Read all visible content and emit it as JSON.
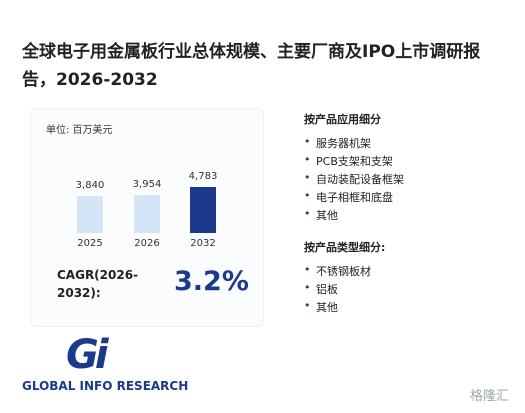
{
  "header": {
    "title": "全球电子用金属板行业总体规模、主要厂商及IPO上市调研报告，2026-2032"
  },
  "unit": "单位: 百万美元",
  "chart_data": {
    "type": "bar",
    "categories": [
      "2025",
      "2026",
      "2032"
    ],
    "values": [
      3840,
      3954,
      4783
    ],
    "value_labels": [
      "3,840",
      "3,954",
      "4,783"
    ],
    "colors": [
      "#d5e5f8",
      "#d5e5f8",
      "#1b3a8c"
    ]
  },
  "cagr": {
    "label": "CAGR(2026-2032):",
    "value": "3.2%"
  },
  "segments": [
    {
      "title": "按产品应用细分",
      "items": [
        "服务器机架",
        "PCB支架和支架",
        "自动装配设备框架",
        "电子相框和底盘",
        "其他"
      ]
    },
    {
      "title": "按产品类型细分:",
      "items": [
        "不锈钢板材",
        "铝板",
        "其他"
      ]
    }
  ],
  "logo": {
    "mark": "Gi",
    "text": "GLOBAL INFO RESEARCH"
  },
  "watermark": "格隆汇"
}
